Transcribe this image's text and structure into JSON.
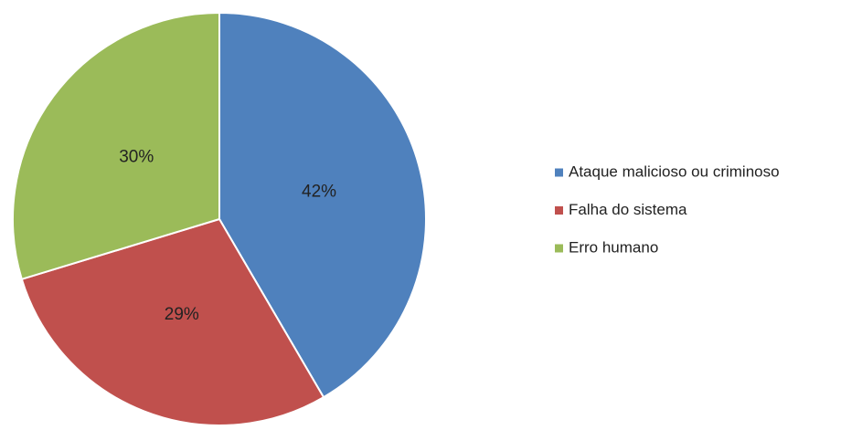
{
  "chart_data": {
    "type": "pie",
    "categories": [
      "Ataque malicioso ou criminoso",
      "Falha do sistema",
      "Erro humano"
    ],
    "values": [
      42,
      29,
      30
    ],
    "value_labels": [
      "42%",
      "29%",
      "30%"
    ],
    "colors": [
      "#4f81bd",
      "#c0504d",
      "#9bbb59"
    ],
    "legend": "right"
  }
}
